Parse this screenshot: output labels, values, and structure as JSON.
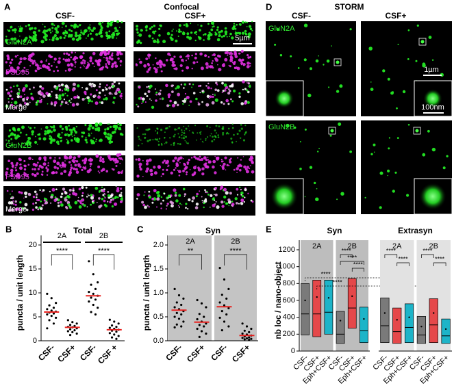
{
  "panels": {
    "A": {
      "label": "A",
      "title": "Confocal",
      "columns": [
        "CSF-",
        "CSF+"
      ],
      "rows": [
        "GluN2A",
        "PSD95",
        "Merge",
        "GluN2B",
        "PSD95",
        "Merge"
      ],
      "scale_bar": "5µm"
    },
    "D": {
      "label": "D",
      "title": "STORM",
      "columns": [
        "CSF-",
        "CSF+"
      ],
      "rows": [
        "GluN2A",
        "GluN2B"
      ],
      "scale_bars": [
        "1µm",
        "100nm"
      ]
    }
  },
  "chart_data": [
    {
      "type": "strip",
      "panel": "B",
      "title": "Total",
      "y_label": "puncta / unit length",
      "groups": [
        "2A",
        "2B"
      ],
      "categories": [
        "CSF-",
        "CSF+",
        "CSF-",
        "CSF +"
      ],
      "ylim": [
        0,
        20
      ],
      "yticks": [
        0,
        5,
        10,
        15,
        20
      ],
      "values": [
        [
          9.8,
          8.9,
          7.9,
          7.4,
          6.9,
          6.6,
          6.3,
          6.1,
          5.9,
          5.7,
          5.5,
          5.2,
          4.8,
          4.3,
          3.6,
          2.6
        ],
        [
          4.3,
          3.9,
          3.6,
          3.3,
          3.1,
          2.9,
          2.8,
          2.6,
          2.4,
          2.2,
          2.0,
          1.8,
          1.5,
          1.2
        ],
        [
          16.6,
          13.9,
          12.2,
          11.7,
          10.8,
          10.2,
          9.8,
          9.4,
          9.0,
          8.6,
          8.2,
          7.5,
          6.9,
          6.0,
          5.5
        ],
        [
          4.4,
          4.0,
          3.6,
          3.2,
          2.9,
          2.7,
          2.5,
          2.3,
          2.1,
          1.9,
          1.6,
          1.3,
          1.0,
          0.7,
          0.4
        ]
      ],
      "means": [
        6.0,
        2.8,
        9.4,
        2.3
      ],
      "mean_color": "#e8211e",
      "significance": [
        "****",
        "****"
      ]
    },
    {
      "type": "strip",
      "panel": "C",
      "title": "Syn",
      "y_label": "puncta / unit length",
      "groups": [
        "2A",
        "2B"
      ],
      "categories": [
        "CSF-",
        "CSF+",
        "CSF-",
        "CSF+"
      ],
      "ylim": [
        0,
        2
      ],
      "yticks": [
        {
          "value": 0,
          "label": "0.0"
        },
        0.5,
        {
          "value": 1,
          "label": "1.0"
        },
        1.5,
        {
          "value": 2,
          "label": "2.0"
        }
      ],
      "shade_color": "#c4c4c4",
      "values": [
        [
          1.08,
          0.95,
          0.88,
          0.8,
          0.75,
          0.7,
          0.66,
          0.62,
          0.58,
          0.55,
          0.5,
          0.46,
          0.4,
          0.34,
          0.3,
          0.28
        ],
        [
          0.85,
          0.78,
          0.7,
          0.56,
          0.5,
          0.45,
          0.4,
          0.36,
          0.33,
          0.3,
          0.25,
          0.2,
          0.15,
          0.08
        ],
        [
          1.52,
          1.28,
          1.08,
          0.96,
          0.88,
          0.8,
          0.74,
          0.68,
          0.62,
          0.55,
          0.48,
          0.4,
          0.3,
          0.22
        ],
        [
          0.36,
          0.3,
          0.25,
          0.21,
          0.18,
          0.15,
          0.13,
          0.11,
          0.09,
          0.07,
          0.06,
          0.05,
          0.04,
          0.03,
          0.02
        ]
      ],
      "means": [
        0.64,
        0.39,
        0.71,
        0.11
      ],
      "mean_color": "#e8211e",
      "significance": [
        "**",
        "****"
      ]
    },
    {
      "type": "range",
      "panel": "E",
      "title": "Syn",
      "y_label": "nb loc / nano-object",
      "groups": [
        "2A",
        "2B"
      ],
      "categories": [
        "CSF-",
        "CSF+",
        "Eph+CSF+",
        "CSF-",
        "CSF+",
        "Eph+CSF+"
      ],
      "colors": [
        "#7a7a7a",
        "#e5484a",
        "#1db4c8",
        "#7a7a7a",
        "#e5484a",
        "#1db4c8"
      ],
      "ylim": [
        0,
        1200
      ],
      "yticks": [
        0,
        200,
        400,
        600,
        800,
        1000,
        1200
      ],
      "shade_color": "#bdbdbd",
      "low": [
        190,
        170,
        200,
        90,
        270,
        100
      ],
      "median": [
        440,
        440,
        460,
        200,
        510,
        240
      ],
      "high": [
        800,
        840,
        840,
        470,
        860,
        520
      ],
      "mean": [
        600,
        640,
        630,
        360,
        650,
        380
      ],
      "significance": [
        "****",
        "****",
        "****",
        "****",
        "****"
      ]
    },
    {
      "type": "range",
      "title": "Extrasyn",
      "groups": [
        "2A",
        "2B"
      ],
      "categories": [
        "CSF-",
        "CSF+",
        "Eph+CSF+",
        "CSF-",
        "CSF+",
        "Eph+CSF+"
      ],
      "colors": [
        "#7a7a7a",
        "#e5484a",
        "#1db4c8",
        "#7a7a7a",
        "#e5484a",
        "#1db4c8"
      ],
      "ylim": [
        0,
        1200
      ],
      "shade_color": "#e2e2e2",
      "low": [
        100,
        90,
        100,
        90,
        100,
        90
      ],
      "median": [
        300,
        230,
        280,
        190,
        310,
        180
      ],
      "high": [
        630,
        510,
        560,
        410,
        620,
        380
      ],
      "mean": [
        450,
        370,
        400,
        290,
        450,
        260
      ],
      "significance": [
        "****",
        "****",
        "****",
        "****"
      ]
    }
  ]
}
